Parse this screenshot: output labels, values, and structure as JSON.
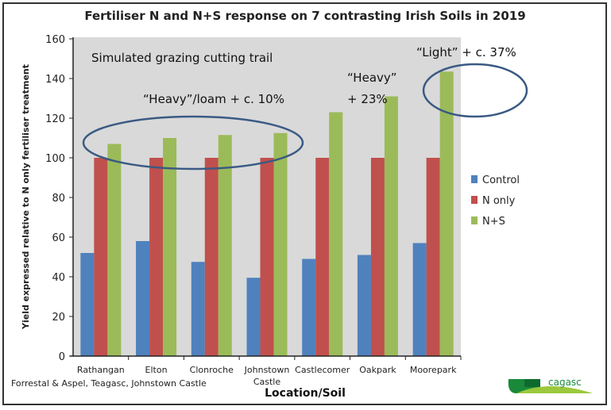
{
  "chart_data": {
    "type": "bar",
    "title": "Fertiliser N and N+S response on 7 contrasting Irish Soils in 2019",
    "xlabel": "Location/Soil",
    "ylabel": "Yield expressed relative to N only fertiliser treatment",
    "ylim": [
      0,
      160
    ],
    "yticks": [
      0,
      20,
      40,
      60,
      80,
      100,
      120,
      140,
      160
    ],
    "grid": false,
    "legend_position": "right",
    "categories": [
      "Rathangan",
      "Elton",
      "Clonroche",
      "Johnstown Castle",
      "Castlecomer",
      "Oakpark",
      "Moorepark"
    ],
    "series": [
      {
        "name": "Control",
        "color": "#4f81bd",
        "values": [
          52,
          58,
          47.5,
          39.5,
          49,
          51,
          57
        ]
      },
      {
        "name": "N only",
        "color": "#c0504d",
        "values": [
          100,
          100,
          100,
          100,
          100,
          100,
          100
        ]
      },
      {
        "name": "N+S",
        "color": "#9bbb59",
        "values": [
          107,
          110,
          111.5,
          112.5,
          123,
          131,
          143.5
        ]
      }
    ],
    "annotations": {
      "trial": "Simulated grazing cutting trail",
      "heavy_loam": "“Heavy”/loam + c. 10%",
      "heavy_line1": "“Heavy”",
      "heavy_line2": "+ 23%",
      "light": "“Light” + c. 37%"
    },
    "credit": "Forrestal & Aspel, Teagasc, Johnstown Castle",
    "logo_text": "teagasc"
  }
}
